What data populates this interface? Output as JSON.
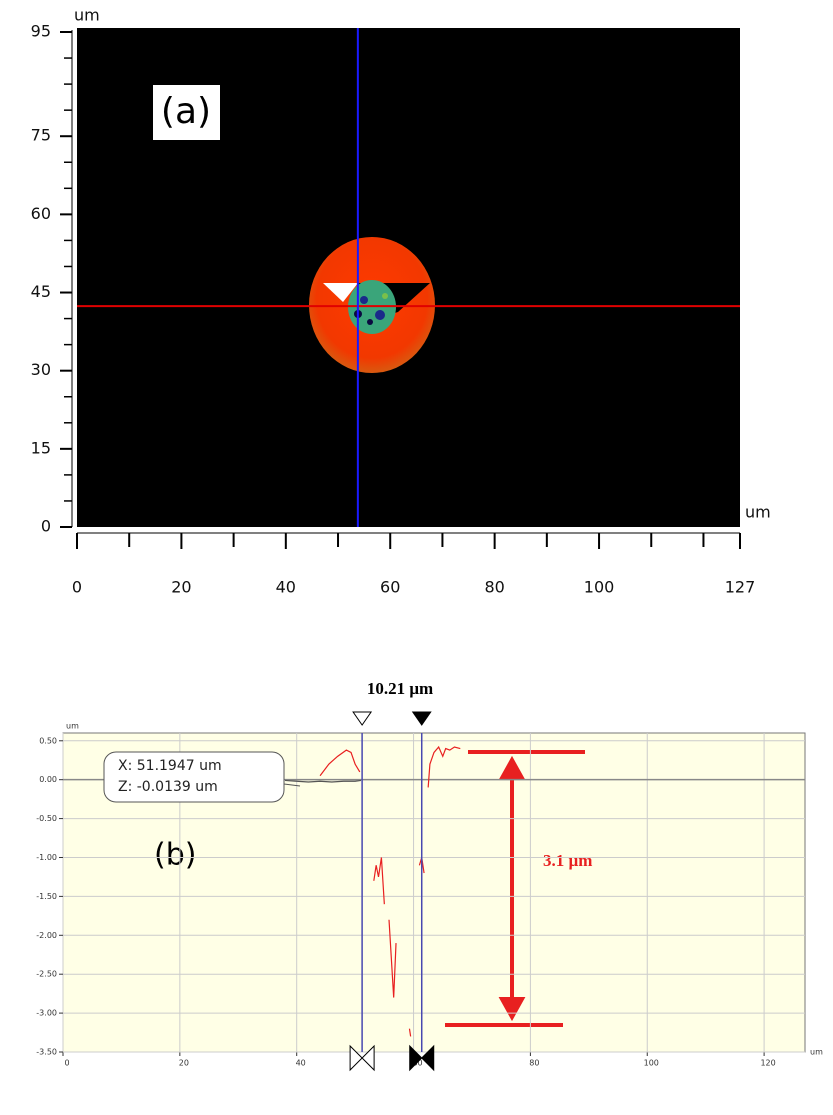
{
  "chart_data": [
    {
      "type": "image",
      "label": "(a)",
      "x_unit": "um",
      "y_unit": "um",
      "xlim": [
        0,
        127
      ],
      "ylim": [
        0,
        95
      ],
      "xticks": [
        0,
        20,
        40,
        60,
        80,
        100,
        127
      ],
      "yticks": [
        0,
        15,
        30,
        45,
        60,
        75,
        95
      ],
      "xminorticks": [
        10,
        30,
        50,
        70,
        90,
        110,
        120
      ],
      "yminorticks": [
        5,
        10,
        20,
        25,
        35,
        40,
        50,
        55,
        65,
        70,
        80,
        85,
        90
      ],
      "crosshair": {
        "x": 53.8,
        "y": 42.4,
        "x_color": "#1a1aff",
        "y_color": "#e00000"
      }
    },
    {
      "type": "line",
      "label": "(b)",
      "x_unit": "um",
      "y_unit": "um",
      "xlim": [
        0,
        127
      ],
      "ylim": [
        -3.5,
        0.6
      ],
      "xticks": [
        0,
        20,
        40,
        60,
        80,
        100,
        120
      ],
      "yticks": [
        {
          "value": 0.5,
          "label": "0.50"
        },
        {
          "value": 0,
          "label": "0.00"
        },
        {
          "value": -0.5,
          "label": "-0.50"
        },
        {
          "value": -1,
          "label": "-1.00"
        },
        {
          "value": -1.5,
          "label": "-1.50"
        },
        {
          "value": -2,
          "label": "-2.00"
        },
        {
          "value": -2.5,
          "label": "-2.50"
        },
        {
          "value": -3,
          "label": "-3.00"
        },
        {
          "value": -3.5,
          "label": "-3.50"
        }
      ],
      "grid": true,
      "series": [
        {
          "color": "#555555",
          "x": [
            38,
            40,
            42,
            44,
            46,
            48,
            50,
            51
          ],
          "values": [
            -0.01,
            -0.02,
            -0.03,
            -0.02,
            -0.03,
            -0.02,
            -0.02,
            -0.01
          ]
        },
        {
          "color": "#e82020",
          "x": [
            44,
            45.5,
            47,
            48.5,
            49.3,
            50,
            50.8,
            52,
            53.2,
            53.6,
            54,
            54.5,
            55,
            55.4,
            55.8,
            56.2,
            56.6,
            57,
            58,
            59.3,
            59.5,
            60,
            61,
            61.4,
            61.8,
            62.2,
            62.5,
            62.8,
            63.5,
            64.3,
            65,
            65.5,
            66.2,
            67,
            68
          ],
          "values": [
            0.05,
            0.2,
            0.3,
            0.38,
            0.35,
            0.2,
            0.1,
            null,
            -1.3,
            -1.1,
            -1.25,
            -1.0,
            -1.6,
            null,
            -1.8,
            -2.3,
            -2.8,
            -2.1,
            null,
            -3.2,
            -3.3,
            null,
            -1.1,
            -1.0,
            -1.2,
            null,
            -0.1,
            0.2,
            0.35,
            0.42,
            0.3,
            0.4,
            0.38,
            0.42,
            0.4
          ]
        }
      ],
      "cursors": [
        51.1947,
        61.4
      ],
      "cursor_color": "#4848b0",
      "readout": [
        "X: 51.1947 um",
        "Z: -0.0139 um"
      ],
      "distance_label": "10.21 μm",
      "height_label": "3.1 µm"
    }
  ]
}
